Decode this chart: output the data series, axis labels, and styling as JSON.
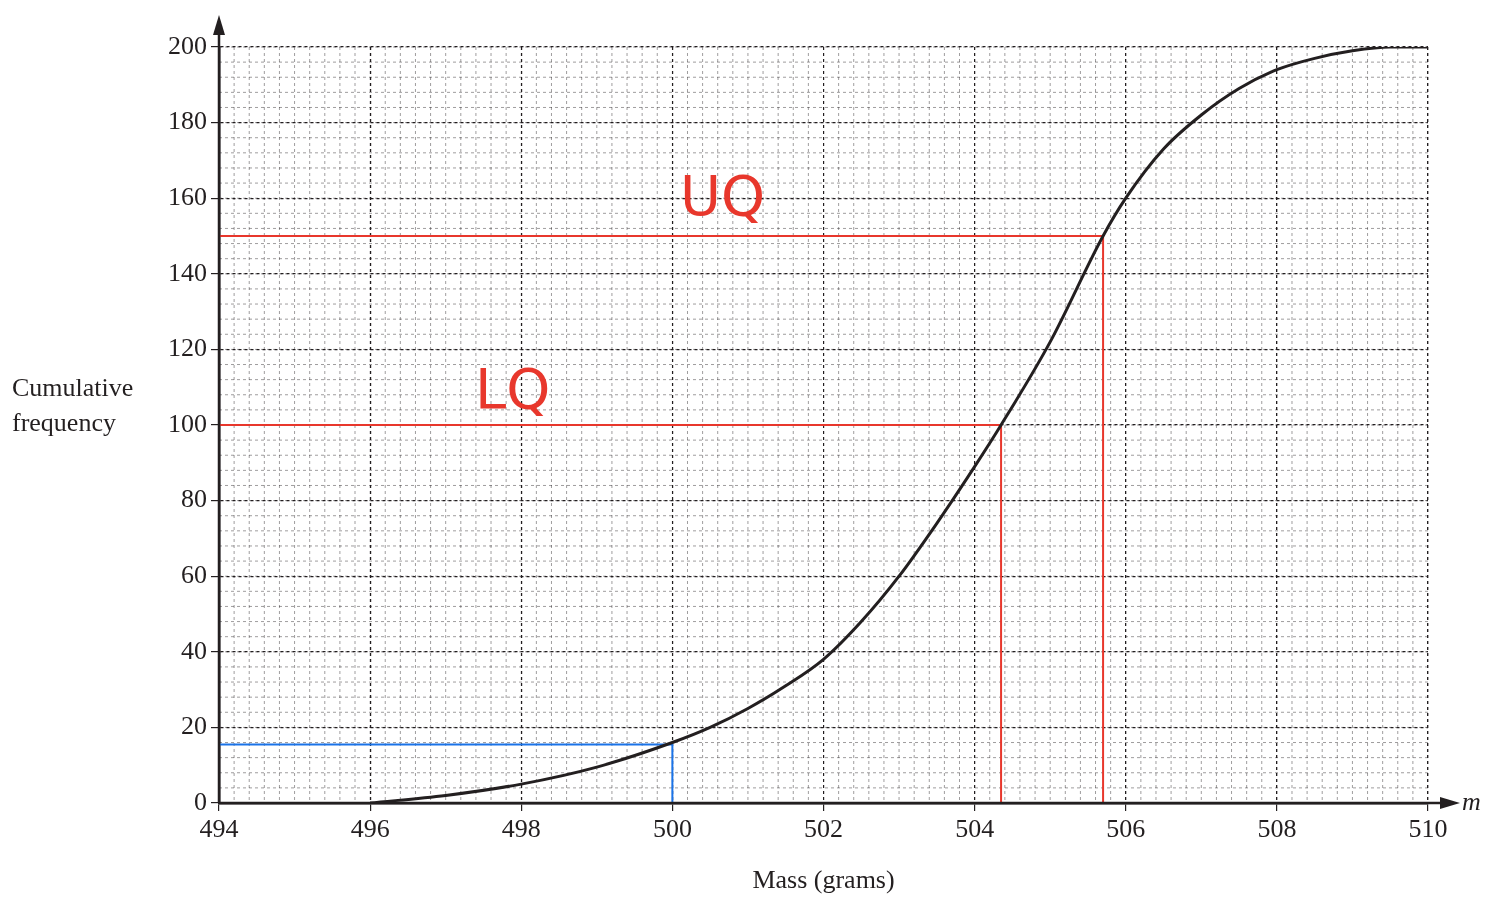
{
  "chart_data": {
    "type": "line",
    "xlabel": "Mass (grams)",
    "ylabel": "Cumulative frequency",
    "xlim": [
      494,
      510
    ],
    "ylim": [
      0,
      200
    ],
    "xticks": [
      494,
      496,
      498,
      500,
      502,
      504,
      506,
      508,
      510
    ],
    "yticks": [
      0,
      20,
      40,
      60,
      80,
      100,
      120,
      140,
      160,
      180,
      200
    ],
    "grid": true,
    "marker": "none",
    "legend": false,
    "series": [
      {
        "color": "#231f20",
        "x": [
          496,
          497,
          498,
          499,
          500,
          500.5,
          501,
          501.5,
          502,
          502.5,
          503,
          503.5,
          504,
          504.35,
          505,
          505.7,
          506,
          506.5,
          507,
          507.5,
          508,
          508.5,
          509,
          509.5,
          510
        ],
        "values": [
          0,
          2,
          5,
          9.5,
          16,
          20,
          25,
          31,
          38,
          48,
          60,
          74,
          89,
          100,
          122,
          150,
          160,
          173,
          182,
          189,
          194,
          197,
          199,
          200,
          200
        ]
      },
      {
        "color": "#e8372c",
        "x": [
          494,
          505.7,
          505.7
        ],
        "values": [
          150,
          150,
          0
        ]
      },
      {
        "color": "#e8372c",
        "x": [
          494,
          504.35,
          504.35
        ],
        "values": [
          100,
          100,
          0
        ]
      },
      {
        "color": "#1a73e8",
        "x": [
          494,
          500,
          500
        ],
        "values": [
          15.5,
          15.5,
          0
        ]
      }
    ],
    "annotations": [
      "UQ",
      "LQ",
      "m"
    ]
  }
}
